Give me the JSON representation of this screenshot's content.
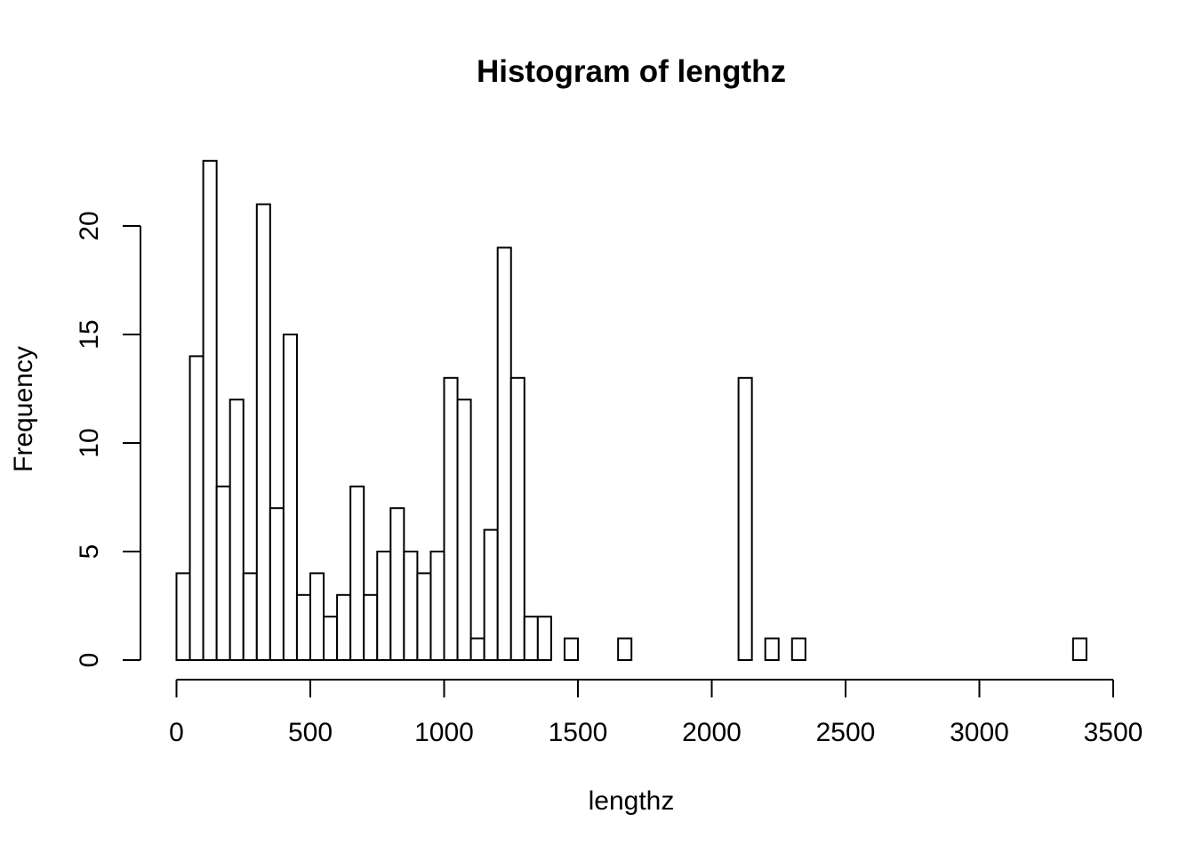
{
  "chart_data": {
    "type": "bar",
    "title": "Histogram of lengthz",
    "xlabel": "lengthz",
    "ylabel": "Frequency",
    "bin_width": 50,
    "bins_start": 0,
    "bins_end": 3400,
    "xlim": [
      0,
      3500
    ],
    "ylim": [
      0,
      23
    ],
    "x_ticks": [
      0,
      500,
      1000,
      1500,
      2000,
      2500,
      3000,
      3500
    ],
    "y_ticks": [
      0,
      5,
      10,
      15,
      20
    ],
    "values": [
      4,
      14,
      23,
      8,
      12,
      4,
      21,
      7,
      15,
      3,
      4,
      2,
      3,
      8,
      3,
      5,
      7,
      5,
      4,
      5,
      13,
      12,
      1,
      6,
      19,
      13,
      2,
      2,
      0,
      1,
      0,
      0,
      0,
      1,
      0,
      0,
      0,
      0,
      0,
      0,
      0,
      0,
      13,
      0,
      1,
      0,
      1,
      0,
      0,
      0,
      0,
      0,
      0,
      0,
      0,
      0,
      0,
      0,
      0,
      0,
      0,
      0,
      0,
      0,
      0,
      0,
      0,
      1
    ],
    "grid": false,
    "legend": "none",
    "bar_fill": "#ffffff",
    "bar_stroke": "#000000"
  }
}
